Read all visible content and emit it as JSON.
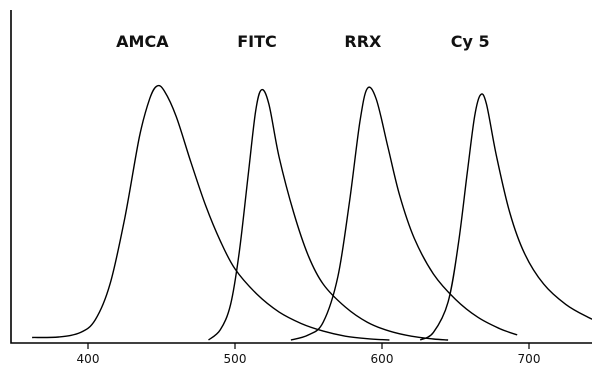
{
  "chart_data": {
    "type": "line",
    "x_range": [
      355,
      750
    ],
    "y_range": [
      0,
      1
    ],
    "grid": false,
    "x_ticks": [
      {
        "value": 400,
        "label": "400"
      },
      {
        "value": 500,
        "label": "500"
      },
      {
        "value": 600,
        "label": "600"
      },
      {
        "value": 700,
        "label": "700"
      }
    ],
    "series": [
      {
        "name": "AMCA",
        "points": [
          [
            362,
            0.01
          ],
          [
            380,
            0.012
          ],
          [
            395,
            0.03
          ],
          [
            405,
            0.08
          ],
          [
            415,
            0.22
          ],
          [
            425,
            0.48
          ],
          [
            435,
            0.8
          ],
          [
            442,
            0.95
          ],
          [
            447,
            1.0
          ],
          [
            452,
            0.98
          ],
          [
            460,
            0.88
          ],
          [
            470,
            0.7
          ],
          [
            480,
            0.53
          ],
          [
            490,
            0.39
          ],
          [
            500,
            0.28
          ],
          [
            515,
            0.18
          ],
          [
            530,
            0.11
          ],
          [
            545,
            0.065
          ],
          [
            560,
            0.035
          ],
          [
            575,
            0.015
          ],
          [
            590,
            0.005
          ],
          [
            605,
            0.0
          ]
        ]
      },
      {
        "name": "FITC",
        "points": [
          [
            482,
            0.0
          ],
          [
            490,
            0.04
          ],
          [
            497,
            0.14
          ],
          [
            503,
            0.35
          ],
          [
            509,
            0.65
          ],
          [
            514,
            0.9
          ],
          [
            518,
            0.985
          ],
          [
            523,
            0.93
          ],
          [
            530,
            0.72
          ],
          [
            540,
            0.5
          ],
          [
            550,
            0.33
          ],
          [
            560,
            0.22
          ],
          [
            575,
            0.13
          ],
          [
            590,
            0.07
          ],
          [
            605,
            0.035
          ],
          [
            620,
            0.015
          ],
          [
            635,
            0.004
          ],
          [
            645,
            0.0
          ]
        ]
      },
      {
        "name": "RRX",
        "points": [
          [
            538,
            0.0
          ],
          [
            550,
            0.02
          ],
          [
            560,
            0.07
          ],
          [
            570,
            0.25
          ],
          [
            578,
            0.55
          ],
          [
            585,
            0.86
          ],
          [
            590,
            0.99
          ],
          [
            596,
            0.95
          ],
          [
            604,
            0.76
          ],
          [
            612,
            0.57
          ],
          [
            622,
            0.4
          ],
          [
            635,
            0.26
          ],
          [
            650,
            0.16
          ],
          [
            665,
            0.09
          ],
          [
            680,
            0.045
          ],
          [
            692,
            0.02
          ]
        ]
      },
      {
        "name": "Cy 5",
        "points": [
          [
            626,
            0.0
          ],
          [
            635,
            0.03
          ],
          [
            645,
            0.15
          ],
          [
            652,
            0.38
          ],
          [
            658,
            0.66
          ],
          [
            663,
            0.88
          ],
          [
            667,
            0.965
          ],
          [
            671,
            0.93
          ],
          [
            678,
            0.72
          ],
          [
            687,
            0.5
          ],
          [
            697,
            0.34
          ],
          [
            710,
            0.22
          ],
          [
            725,
            0.14
          ],
          [
            740,
            0.09
          ],
          [
            750,
            0.065
          ]
        ]
      }
    ],
    "series_labels": [
      {
        "text": "AMCA",
        "x": 437
      },
      {
        "text": "FITC",
        "x": 515
      },
      {
        "text": "RRX",
        "x": 587
      },
      {
        "text": "Cy 5",
        "x": 660
      }
    ]
  }
}
